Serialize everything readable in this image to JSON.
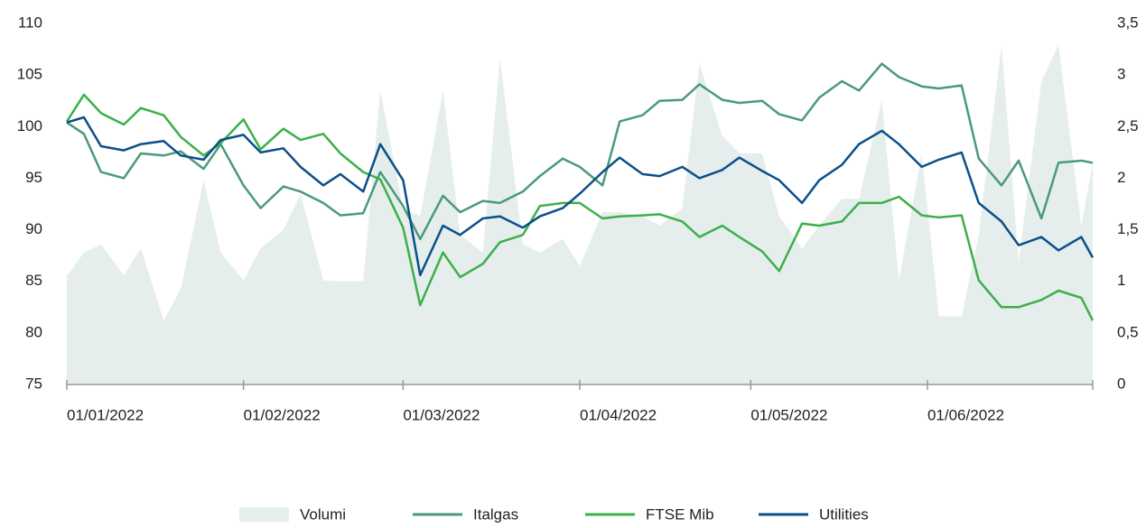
{
  "chart_data": {
    "type": "line",
    "x": [
      "01/01/2022",
      "04/01/2022",
      "07/01/2022",
      "11/01/2022",
      "14/01/2022",
      "18/01/2022",
      "21/01/2022",
      "25/01/2022",
      "28/01/2022",
      "01/02/2022",
      "04/02/2022",
      "08/02/2022",
      "11/02/2022",
      "15/02/2022",
      "18/02/2022",
      "22/02/2022",
      "25/02/2022",
      "01/03/2022",
      "04/03/2022",
      "08/03/2022",
      "11/03/2022",
      "15/03/2022",
      "18/03/2022",
      "22/03/2022",
      "25/03/2022",
      "29/03/2022",
      "01/04/2022",
      "05/04/2022",
      "08/04/2022",
      "12/04/2022",
      "15/04/2022",
      "19/04/2022",
      "22/04/2022",
      "26/04/2022",
      "29/04/2022",
      "03/05/2022",
      "06/05/2022",
      "10/05/2022",
      "13/05/2022",
      "17/05/2022",
      "20/05/2022",
      "24/05/2022",
      "27/05/2022",
      "31/05/2022",
      "03/06/2022",
      "07/06/2022",
      "10/06/2022",
      "14/06/2022",
      "17/06/2022",
      "21/06/2022",
      "24/06/2022",
      "28/06/2022",
      "30/06/2022"
    ],
    "xlim": [
      "01/01/2022",
      "30/06/2022"
    ],
    "xticks": [
      "01/01/2022",
      "01/02/2022",
      "01/03/2022",
      "01/04/2022",
      "01/05/2022",
      "01/06/2022"
    ],
    "ylim": [
      75,
      110
    ],
    "yticks": [
      75,
      80,
      85,
      90,
      95,
      100,
      105,
      110
    ],
    "y2lim": [
      0,
      3.5
    ],
    "y2ticks": [
      0,
      {
        "value": 0.5,
        "label": "0,5"
      },
      1,
      {
        "value": 1.5,
        "label": "1,5"
      },
      2,
      {
        "value": 2.5,
        "label": "2,5"
      },
      3,
      {
        "value": 3.5,
        "label": "3,5"
      }
    ],
    "series": [
      {
        "name": "Volumi",
        "type": "area",
        "axis": "y2",
        "color": "#e5eeec",
        "values": [
          1.05,
          1.28,
          1.36,
          1.06,
          1.32,
          0.62,
          0.93,
          1.98,
          1.28,
          1.01,
          1.32,
          1.5,
          1.85,
          1.01,
          1.0,
          1.0,
          2.85,
          1.71,
          1.63,
          2.85,
          1.45,
          1.28,
          3.16,
          1.36,
          1.28,
          1.41,
          1.15,
          1.67,
          1.67,
          1.63,
          1.54,
          1.71,
          3.11,
          2.41,
          2.24,
          2.24,
          1.63,
          1.32,
          1.54,
          1.8,
          1.8,
          2.76,
          1.01,
          2.24,
          0.66,
          0.66,
          1.45,
          3.29,
          1.19,
          2.94,
          3.29,
          1.54,
          2.15
        ]
      },
      {
        "name": "Italgas",
        "color": "#4a9a7a",
        "values": [
          100.4,
          99.3,
          95.6,
          95,
          97.4,
          97.2,
          97.6,
          95.9,
          98.3,
          94.3,
          92.1,
          94.2,
          93.7,
          92.6,
          91.4,
          91.6,
          95.6,
          92.3,
          89.1,
          93.3,
          91.7,
          92.8,
          92.6,
          93.7,
          95.2,
          96.9,
          96.1,
          94.3,
          100.5,
          101.1,
          102.5,
          102.6,
          104.1,
          102.6,
          102.3,
          102.5,
          101.2,
          100.6,
          102.8,
          104.4,
          103.5,
          106.1,
          104.8,
          103.9,
          103.7,
          104,
          96.9,
          94.3,
          96.7,
          91.1,
          96.5,
          96.7,
          96.5
        ]
      },
      {
        "name": "FTSE Mib",
        "color": "#3cb04a",
        "values": [
          100.5,
          103.1,
          101.3,
          100.2,
          101.8,
          101.1,
          99,
          97.2,
          98.4,
          100.7,
          97.8,
          99.8,
          98.7,
          99.3,
          97.4,
          95.6,
          94.9,
          90.2,
          82.7,
          87.8,
          85.4,
          86.7,
          88.8,
          89.5,
          92.3,
          92.6,
          92.6,
          91.1,
          91.3,
          91.4,
          91.5,
          90.8,
          89.3,
          90.4,
          89.3,
          87.9,
          86,
          90.6,
          90.4,
          90.8,
          92.6,
          92.6,
          93.2,
          91.4,
          91.2,
          91.4,
          85.1,
          82.5,
          82.5,
          83.2,
          84.1,
          83.4,
          81.2
        ]
      },
      {
        "name": "Utilities",
        "color": "#0b4f8a",
        "values": [
          100.4,
          100.9,
          98.1,
          97.7,
          98.3,
          98.6,
          97.2,
          96.8,
          98.7,
          99.2,
          97.5,
          97.9,
          96.1,
          94.3,
          95.4,
          93.7,
          98.3,
          94.8,
          85.6,
          90.4,
          89.5,
          91.1,
          91.3,
          90.2,
          91.3,
          92.1,
          93.5,
          95.6,
          97,
          95.4,
          95.2,
          96.1,
          95,
          95.8,
          97,
          95.7,
          94.8,
          92.6,
          94.8,
          96.3,
          98.3,
          99.6,
          98.3,
          96.1,
          96.8,
          97.5,
          92.6,
          90.8,
          88.5,
          89.3,
          88,
          89.3,
          87.3
        ]
      }
    ]
  }
}
